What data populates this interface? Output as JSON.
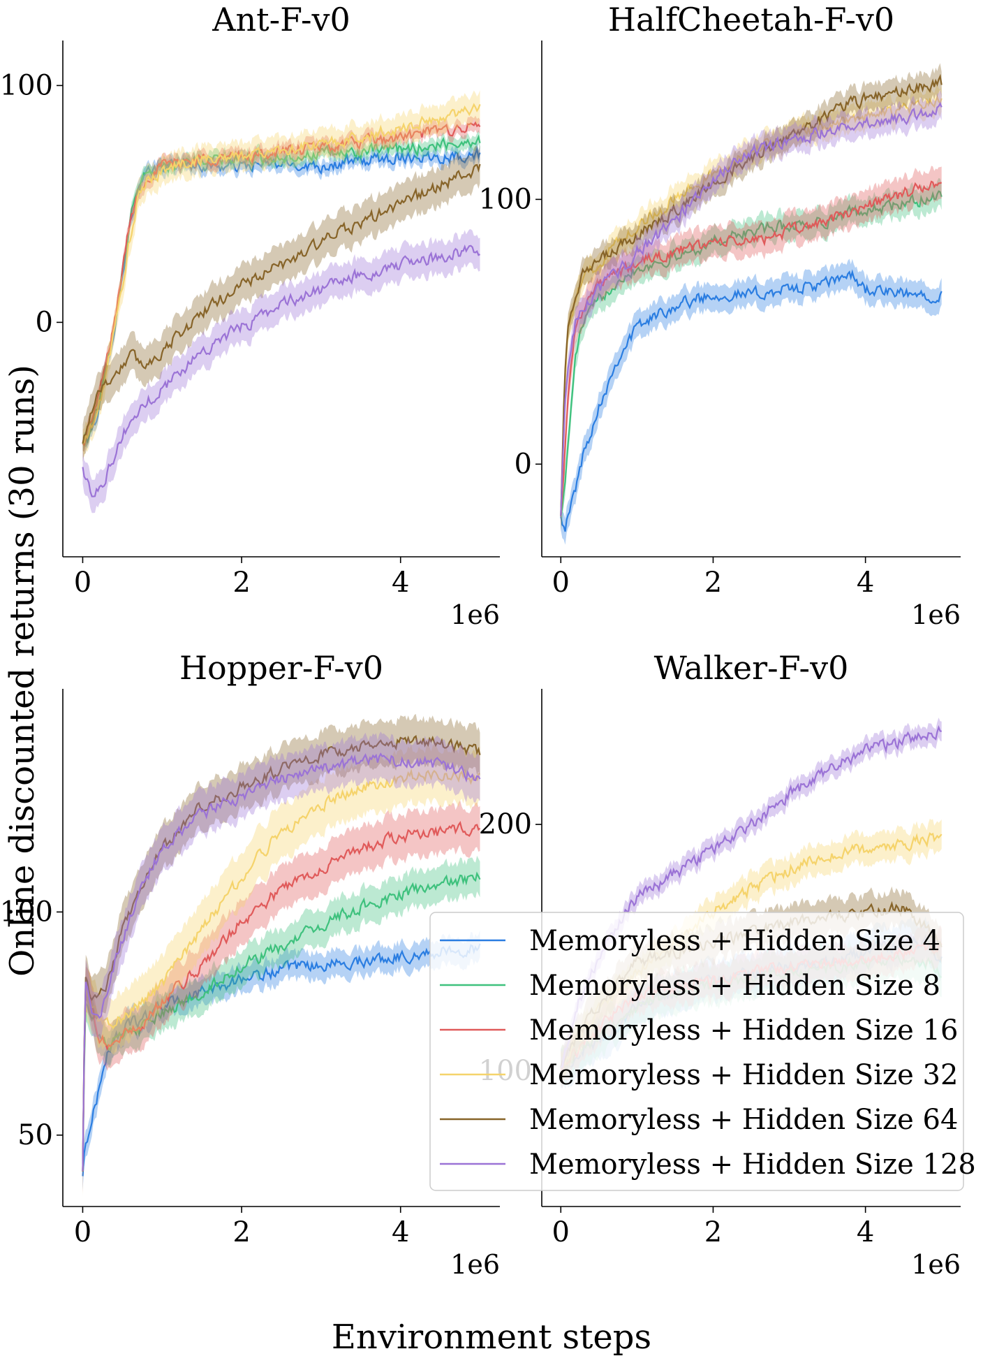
{
  "figure": {
    "xlabel": "Environment steps",
    "ylabel": "Online discounted returns (30 runs)"
  },
  "colors": {
    "Memoryless + Hidden Size 4": "#2a7de1",
    "Memoryless + Hidden Size 8": "#3ec17d",
    "Memoryless + Hidden Size 16": "#e05a5a",
    "Memoryless + Hidden Size 32": "#f5d36b",
    "Memoryless + Hidden Size 64": "#876429",
    "Memoryless + Hidden Size 128": "#9b73d6"
  },
  "legend": {
    "placement": "lower-right",
    "entries": [
      "Memoryless + Hidden Size 4",
      "Memoryless + Hidden Size 8",
      "Memoryless + Hidden Size 16",
      "Memoryless + Hidden Size 32",
      "Memoryless + Hidden Size 64",
      "Memoryless + Hidden Size 128"
    ]
  },
  "chart_data": [
    {
      "type": "line",
      "title": "Ant-F-v0",
      "xlabel": "",
      "ylabel": "",
      "x_offset_label": "1e6",
      "xlim": [
        -0.25,
        5.25
      ],
      "ylim": [
        -99,
        119
      ],
      "xticks": [
        0,
        2,
        4
      ],
      "yticks": [
        0,
        100
      ],
      "x": [
        0,
        0.1,
        0.2,
        0.3,
        0.4,
        0.5,
        0.6,
        0.7,
        0.8,
        1.0,
        1.25,
        1.5,
        2.0,
        2.5,
        3.0,
        3.5,
        4.0,
        4.5,
        5.0
      ],
      "series": [
        {
          "name": "Memoryless + Hidden Size 4",
          "band": 3,
          "values": [
            -52,
            -47,
            -37,
            -18,
            -2,
            20,
            42,
            56,
            62,
            66,
            67,
            66,
            66,
            67,
            66,
            68,
            70,
            70,
            71
          ]
        },
        {
          "name": "Memoryless + Hidden Size 8",
          "band": 3,
          "values": [
            -52,
            -44,
            -34,
            -16,
            0,
            22,
            44,
            56,
            62,
            66,
            68,
            68,
            69,
            70,
            71,
            72,
            73,
            75,
            77
          ]
        },
        {
          "name": "Memoryless + Hidden Size 16",
          "band": 3,
          "values": [
            -52,
            -42,
            -32,
            -16,
            0,
            22,
            44,
            55,
            61,
            66,
            68,
            69,
            70,
            72,
            74,
            76,
            78,
            81,
            83
          ]
        },
        {
          "name": "Memoryless + Hidden Size 32",
          "band": 6,
          "values": [
            -52,
            -45,
            -37,
            -20,
            -4,
            16,
            36,
            52,
            59,
            64,
            67,
            69,
            70,
            73,
            75,
            78,
            82,
            86,
            92
          ]
        },
        {
          "name": "Memoryless + Hidden Size 64",
          "band": 8,
          "values": [
            -52,
            -38,
            -28,
            -26,
            -22,
            -18,
            -14,
            -16,
            -18,
            -12,
            -4,
            4,
            16,
            24,
            34,
            42,
            50,
            58,
            65
          ]
        },
        {
          "name": "Memoryless + Hidden Size 128",
          "band": 7,
          "values": [
            -62,
            -72,
            -70,
            -64,
            -56,
            -48,
            -42,
            -38,
            -34,
            -28,
            -20,
            -12,
            -2,
            8,
            14,
            20,
            24,
            28,
            31
          ]
        }
      ]
    },
    {
      "type": "line",
      "title": "HalfCheetah-F-v0",
      "xlabel": "",
      "ylabel": "",
      "x_offset_label": "1e6",
      "xlim": [
        -0.25,
        5.25
      ],
      "ylim": [
        -35,
        160
      ],
      "xticks": [
        0,
        2,
        4
      ],
      "yticks": [
        0,
        100
      ],
      "x": [
        0,
        0.05,
        0.1,
        0.2,
        0.3,
        0.5,
        0.75,
        1.0,
        1.5,
        2.0,
        2.5,
        3.0,
        3.5,
        3.8,
        4.0,
        4.5,
        5.0
      ],
      "series": [
        {
          "name": "Memoryless + Hidden Size 4",
          "band": 5,
          "values": [
            -18,
            -24,
            -20,
            -8,
            4,
            22,
            40,
            52,
            60,
            64,
            64,
            66,
            68,
            72,
            66,
            64,
            64
          ]
        },
        {
          "name": "Memoryless + Hidden Size 8",
          "band": 5,
          "values": [
            -18,
            -10,
            10,
            42,
            54,
            62,
            70,
            74,
            78,
            84,
            88,
            90,
            92,
            95,
            96,
            98,
            102
          ]
        },
        {
          "name": "Memoryless + Hidden Size 16",
          "band": 6,
          "values": [
            -18,
            2,
            30,
            52,
            60,
            68,
            72,
            76,
            80,
            84,
            84,
            88,
            92,
            95,
            98,
            102,
            107
          ]
        },
        {
          "name": "Memoryless + Hidden Size 32",
          "band": 5,
          "values": [
            -18,
            30,
            52,
            62,
            70,
            76,
            84,
            90,
            100,
            110,
            118,
            124,
            128,
            130,
            131,
            134,
            138
          ]
        },
        {
          "name": "Memoryless + Hidden Size 64",
          "band": 5,
          "values": [
            -18,
            32,
            54,
            66,
            72,
            76,
            82,
            86,
            96,
            106,
            116,
            124,
            132,
            136,
            138,
            141,
            144
          ]
        },
        {
          "name": "Memoryless + Hidden Size 128",
          "band": 5,
          "values": [
            -18,
            20,
            40,
            54,
            60,
            66,
            72,
            80,
            92,
            108,
            118,
            122,
            126,
            128,
            129,
            131,
            135
          ]
        }
      ]
    },
    {
      "type": "line",
      "title": "Hopper-F-v0",
      "xlabel": "",
      "ylabel": "",
      "x_offset_label": "1e6",
      "xlim": [
        -0.25,
        5.25
      ],
      "ylim": [
        34,
        150
      ],
      "xticks": [
        0,
        2,
        4
      ],
      "yticks": [
        50,
        100
      ],
      "x": [
        0,
        0.03,
        0.1,
        0.2,
        0.3,
        0.5,
        0.75,
        1.0,
        1.5,
        2.0,
        2.5,
        3.0,
        3.5,
        4.0,
        4.5,
        5.0
      ],
      "series": [
        {
          "name": "Memoryless + Hidden Size 4",
          "band": 3,
          "values": [
            41,
            48,
            52,
            60,
            68,
            74,
            76,
            79,
            82,
            85,
            87,
            88,
            89,
            90,
            91,
            92
          ]
        },
        {
          "name": "Memoryless + Hidden Size 8",
          "band": 4,
          "values": [
            42,
            80,
            78,
            72,
            70,
            72,
            74,
            77,
            82,
            88,
            92,
            97,
            101,
            104,
            106,
            108
          ]
        },
        {
          "name": "Memoryless + Hidden Size 16",
          "band": 5,
          "values": [
            42,
            82,
            80,
            72,
            70,
            72,
            75,
            80,
            88,
            98,
            105,
            110,
            114,
            117,
            118,
            119
          ]
        },
        {
          "name": "Memoryless + Hidden Size 32",
          "band": 6,
          "values": [
            42,
            84,
            80,
            76,
            75,
            76,
            80,
            84,
            96,
            108,
            118,
            124,
            128,
            130,
            131,
            130
          ]
        },
        {
          "name": "Memoryless + Hidden Size 64",
          "band": 5,
          "values": [
            42,
            86,
            82,
            80,
            84,
            96,
            106,
            114,
            124,
            128,
            132,
            135,
            137,
            138,
            138,
            136
          ]
        },
        {
          "name": "Memoryless + Hidden Size 128",
          "band": 5,
          "values": [
            42,
            84,
            78,
            76,
            82,
            94,
            106,
            114,
            122,
            126,
            130,
            132,
            134,
            134,
            133,
            130
          ]
        }
      ]
    },
    {
      "type": "line",
      "title": "Walker-F-v0",
      "xlabel": "",
      "ylabel": "",
      "x_offset_label": "1e6",
      "xlim": [
        -0.25,
        5.25
      ],
      "ylim": [
        45,
        255
      ],
      "xticks": [
        0,
        2,
        4
      ],
      "yticks": [
        100,
        200
      ],
      "x": [
        0,
        0.1,
        0.2,
        0.4,
        0.6,
        0.8,
        1.0,
        1.5,
        2.0,
        2.5,
        3.0,
        3.5,
        4.0,
        4.5,
        4.8,
        5.0
      ],
      "series": [
        {
          "name": "Memoryless + Hidden Size 4",
          "band": 8,
          "values": [
            100,
            102,
            106,
            110,
            114,
            120,
            126,
            132,
            136,
            140,
            142,
            144,
            148,
            152,
            152,
            145
          ]
        },
        {
          "name": "Memoryless + Hidden Size 8",
          "band": 8,
          "values": [
            100,
            104,
            108,
            112,
            116,
            122,
            126,
            132,
            134,
            138,
            140,
            142,
            144,
            146,
            144,
            140
          ]
        },
        {
          "name": "Memoryless + Hidden Size 16",
          "band": 7,
          "values": [
            100,
            104,
            108,
            114,
            120,
            126,
            130,
            134,
            136,
            140,
            142,
            144,
            146,
            148,
            150,
            150
          ]
        },
        {
          "name": "Memoryless + Hidden Size 32",
          "band": 6,
          "values": [
            100,
            106,
            112,
            120,
            128,
            134,
            140,
            152,
            164,
            174,
            182,
            188,
            190,
            192,
            194,
            194
          ]
        },
        {
          "name": "Memoryless + Hidden Size 64",
          "band": 7,
          "values": [
            100,
            108,
            114,
            122,
            130,
            138,
            144,
            148,
            152,
            156,
            160,
            162,
            164,
            166,
            158,
            152
          ]
        },
        {
          "name": "Memoryless + Hidden Size 128",
          "band": 4,
          "values": [
            100,
            112,
            126,
            140,
            152,
            162,
            170,
            180,
            190,
            200,
            212,
            222,
            230,
            234,
            236,
            238
          ]
        }
      ]
    }
  ]
}
